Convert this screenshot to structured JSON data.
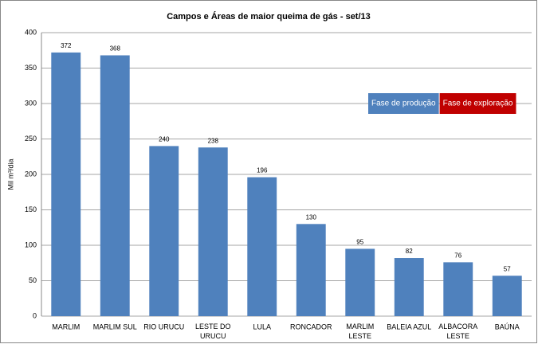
{
  "chart_data": {
    "type": "bar",
    "title": "Campos e Áreas de maior queima de gás - set/13",
    "y_label": "Mil m³/dia",
    "categories": [
      "MARLIM",
      "MARLIM SUL",
      "RIO URUCU",
      "LESTE DO URUCU",
      "LULA",
      "RONCADOR",
      "MARLIM LESTE",
      "BALEIA AZUL",
      "ALBACORA LESTE",
      "BAÚNA"
    ],
    "values": [
      372,
      368,
      240,
      238,
      196,
      130,
      95,
      82,
      76,
      57
    ],
    "color": "#4f81bd",
    "ylim": [
      0,
      400
    ],
    "yticks": [
      0,
      50,
      100,
      150,
      200,
      250,
      300,
      350,
      400
    ],
    "grid": true,
    "legend": [
      {
        "name": "Fase de produção",
        "color": "#4f81bd"
      },
      {
        "name": "Fase de exploração",
        "color": "#c00000"
      }
    ]
  }
}
